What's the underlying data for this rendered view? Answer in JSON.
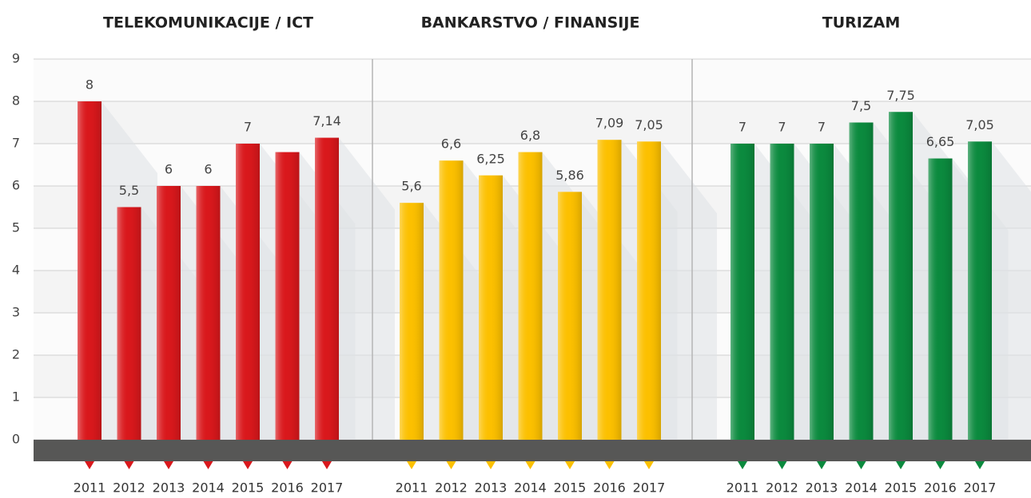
{
  "chart_data": {
    "type": "bar",
    "ylim": [
      0,
      9
    ],
    "yticks": [
      0,
      1,
      2,
      3,
      4,
      5,
      6,
      7,
      8,
      9
    ],
    "grid": true,
    "panels": [
      {
        "title": "TELEKOMUNIKACIJE / ICT",
        "color": "#d9181c",
        "categories": [
          "2011",
          "2012",
          "2013",
          "2014",
          "2015",
          "2016",
          "2017"
        ],
        "values": [
          8,
          5.5,
          6,
          6,
          7,
          6.8,
          7.14
        ],
        "value_labels": [
          "8",
          "5,5",
          "6",
          "6",
          "7",
          null,
          "7,14"
        ]
      },
      {
        "title": "BANKARSTVO / FINANSIJE",
        "color": "#fcc000",
        "categories": [
          "2011",
          "2012",
          "2013",
          "2014",
          "2015",
          "2016",
          "2017"
        ],
        "values": [
          5.6,
          6.6,
          6.25,
          6.8,
          5.86,
          7.09,
          7.05
        ],
        "value_labels": [
          "5,6",
          "6,6",
          "6,25",
          "6,8",
          "5,86",
          "7,09",
          "7,05"
        ]
      },
      {
        "title": "TURIZAM",
        "color": "#0b8a3e",
        "categories": [
          "2011",
          "2012",
          "2013",
          "2014",
          "2015",
          "2016",
          "2017"
        ],
        "values": [
          7,
          7,
          7,
          7.5,
          7.75,
          6.65,
          7.05
        ],
        "value_labels": [
          "7",
          "7",
          "7",
          "7,5",
          "7,75",
          "6,65",
          "7,05"
        ]
      }
    ]
  }
}
